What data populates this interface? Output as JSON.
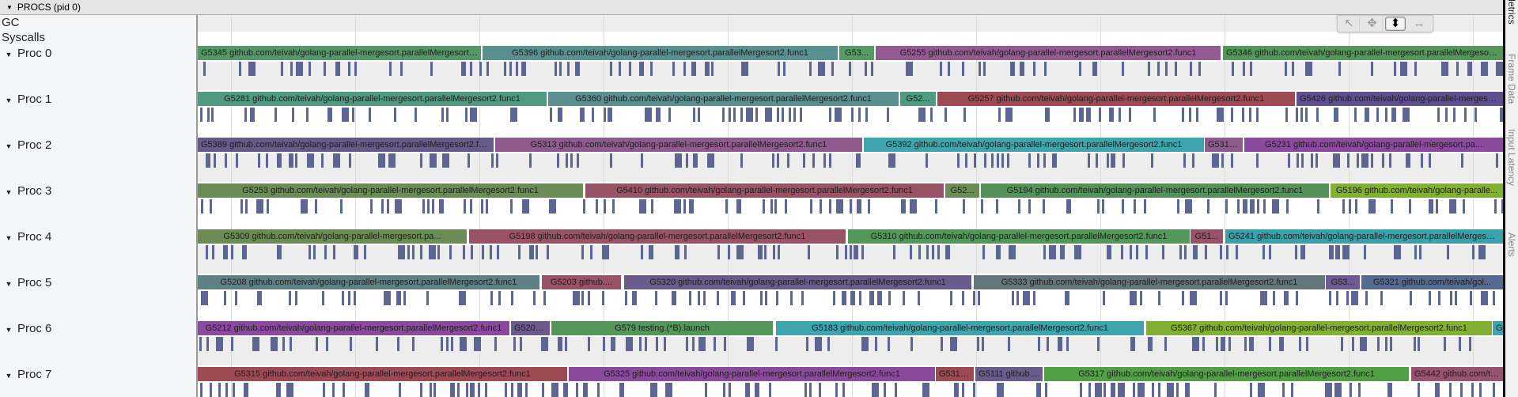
{
  "header": {
    "title": "PROCS (pid 0)"
  },
  "tracks": {
    "gc_label": "GC",
    "syscalls_label": "Syscalls"
  },
  "procs": [
    {
      "label": "Proc 0",
      "slices": [
        {
          "text": "G5345 github.com/teivah/golang-parallel-mergesort.parallelMergesort2.func1",
          "color": "#56976a"
        },
        {
          "text": "G5396 github.com/teivah/golang-parallel-mergesort.parallelMergesort2.func1",
          "color": "#5a9090"
        },
        {
          "text": "G53...",
          "color": "#579a68"
        },
        {
          "text": "G5255 github.com/teivah/golang-parallel-mergesort.parallelMergesort2.func1",
          "color": "#935b91"
        },
        {
          "text": "G5346 github.com/teivah/golang-parallel-mergesort.parallelMergesort2.func1",
          "color": "#55975a"
        }
      ]
    },
    {
      "label": "Proc 1",
      "slices": [
        {
          "text": "G5281 github.com/teivah/golang-parallel-mergesort.parallelMergesort2.func1",
          "color": "#4f9a80"
        },
        {
          "text": "G5360 github.com/teivah/golang-parallel-mergesort.parallelMergesort2.func1",
          "color": "#5a9090"
        },
        {
          "text": "G52...",
          "color": "#4f9a80"
        },
        {
          "text": "G5257 github.com/teivah/golang-parallel-mergesort.parallelMergesort2.func1",
          "color": "#9e4a55"
        },
        {
          "text": "G5426 github.com/teivah/golang-parallel-mergesort.pa...",
          "color": "#5e5090"
        }
      ]
    },
    {
      "label": "Proc 2",
      "slices": [
        {
          "text": "G5389 github.com/teivah/golang-parallel-mergesort.parallelMergesort2.func1",
          "color": "#655a8a"
        },
        {
          "text": "G5313 github.com/teivah/golang-parallel-mergesort.parallelMergesort2.func1",
          "color": "#8f5a8e"
        },
        {
          "text": "G5392 github.com/teivah/golang-parallel-mergesort.parallelMergesort2.func1",
          "color": "#3ea4ad"
        },
        {
          "text": "G5313 ...",
          "color": "#8f5a8e"
        },
        {
          "text": "G5231 github.com/teivah/golang-parallel-mergesort.pa...",
          "color": "#8c4a9e"
        }
      ]
    },
    {
      "label": "Proc 3",
      "slices": [
        {
          "text": "G5253 github.com/teivah/golang-parallel-mergesort.parallelMergesort2.func1",
          "color": "#6b8c54"
        },
        {
          "text": "G5410 github.com/teivah/golang-parallel-mergesort.parallelMergesort2.func1",
          "color": "#985366"
        },
        {
          "text": "G52...",
          "color": "#6b8c54"
        },
        {
          "text": "G5194 github.com/teivah/golang-parallel-mergesort.parallelMergesort2.func1",
          "color": "#54925a"
        },
        {
          "text": "G5196 github.com/teivah/golang-paralle...",
          "color": "#82b032"
        }
      ]
    },
    {
      "label": "Proc 4",
      "slices": [
        {
          "text": "G5309 github.com/teivah/golang-parallel-mergesort.pa...",
          "color": "#6b8c54"
        },
        {
          "text": "G5198 github.com/teivah/golang-parallel-mergesort.parallelMergesort2.func1",
          "color": "#985366"
        },
        {
          "text": "G5310 github.com/teivah/golang-parallel-mergesort.parallelMergesort2.func1",
          "color": "#54975a"
        },
        {
          "text": "G51...",
          "color": "#985368"
        },
        {
          "text": "G5241 github.com/teivah/golang-parallel-mergesort.parallelMergesort2.func1",
          "color": "#3aa0aa"
        }
      ]
    },
    {
      "label": "Proc 5",
      "slices": [
        {
          "text": "G5208 github.com/teivah/golang-parallel-mergesort.parallelMergesort2.func1",
          "color": "#5f8085"
        },
        {
          "text": "G5203 github....",
          "color": "#985368"
        },
        {
          "text": "G5320 github.com/teivah/golang-parallel-mergesort.parallelMergesort2.func1",
          "color": "#6b5a8c"
        },
        {
          "text": "G5333 github.com/teivah/golang-parallel-mergesort.parallelMergesort2.func1",
          "color": "#66767d"
        },
        {
          "text": "G53...",
          "color": "#6f5a92"
        },
        {
          "text": "G5321 github.com/teivah/gol...",
          "color": "#56698f"
        }
      ]
    },
    {
      "label": "Proc 6",
      "slices": [
        {
          "text": "G5212 github.com/teivah/golang-parallel-mergesort.parallelMergesort2.func1",
          "color": "#8c4a9e"
        },
        {
          "text": "G5205 ...",
          "color": "#6b5a8c"
        },
        {
          "text": "G579 testing.(*B).launch",
          "color": "#54975a"
        },
        {
          "text": "G5183 github.com/teivah/golang-parallel-mergesort.parallelMergesort2.func1",
          "color": "#3ea4ad"
        },
        {
          "text": "G5367 github.com/teivah/golang-parallel-mergesort.parallelMergesort2.func1",
          "color": "#82b032"
        },
        {
          "text": "G",
          "color": "#3ea4ad"
        }
      ]
    },
    {
      "label": "Proc 7",
      "slices": [
        {
          "text": "G5315 github.com/teivah/golang-parallel-mergesort.parallelMergesort2.func1",
          "color": "#9e4a55"
        },
        {
          "text": "G5325 github.com/teivah/golang-parallel-mergesort.parallelMergesort2.func1",
          "color": "#8c4a9e"
        },
        {
          "text": "G5315 ...",
          "color": "#9e4a55"
        },
        {
          "text": "G5111 github....",
          "color": "#6b5a8c"
        },
        {
          "text": "G5317 github.com/teivah/golang-parallel-mergesort.parallelMergesort2.func1",
          "color": "#52a045"
        },
        {
          "text": "G5442 github.com/te...",
          "color": "#985370"
        }
      ]
    }
  ],
  "toolbar": {
    "select_icon": "↖",
    "pan_icon": "✥",
    "zoom_icon": "⬍",
    "timing_icon": "↔"
  },
  "side_tabs": [
    "Metrics",
    "Frame Data",
    "Input Latency",
    "Alerts"
  ],
  "colors": {
    "tick": "#5d6592",
    "band_gray": "#ededed"
  }
}
